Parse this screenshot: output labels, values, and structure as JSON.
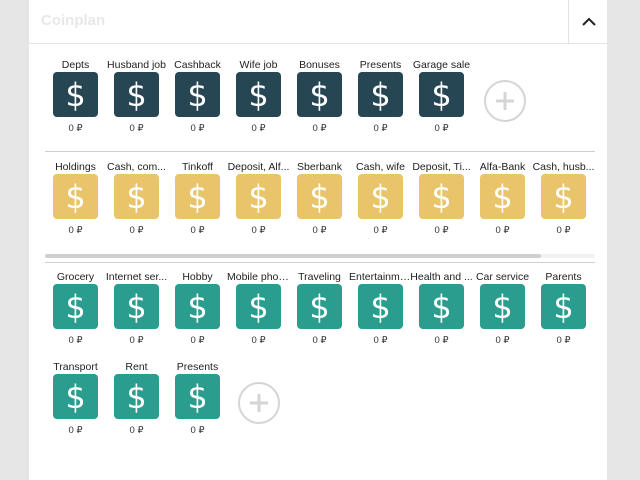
{
  "header": {
    "title": "Coinplan"
  },
  "colors": {
    "income": "#264653",
    "accounts": "#e9c46a",
    "expenses": "#2a9d8f"
  },
  "icons": {
    "tile": "dollar-sign-icon",
    "add": "plus-circle-icon",
    "collapse": "chevron-up-icon"
  },
  "income": {
    "items": [
      {
        "label": "Depts",
        "amount": "0 ₽"
      },
      {
        "label": "Husband job",
        "amount": "0 ₽"
      },
      {
        "label": "Cashback",
        "amount": "0 ₽"
      },
      {
        "label": "Wife job",
        "amount": "0 ₽"
      },
      {
        "label": "Bonuses",
        "amount": "0 ₽"
      },
      {
        "label": "Presents",
        "amount": "0 ₽"
      },
      {
        "label": "Garage sale",
        "amount": "0 ₽"
      }
    ]
  },
  "accounts": {
    "items": [
      {
        "label": "Holdings",
        "amount": "0 ₽"
      },
      {
        "label": "Cash, com...",
        "amount": "0 ₽"
      },
      {
        "label": "Tinkoff",
        "amount": "0 ₽"
      },
      {
        "label": "Deposit, Alf...",
        "amount": "0 ₽"
      },
      {
        "label": "Sberbank",
        "amount": "0 ₽"
      },
      {
        "label": "Cash, wife",
        "amount": "0 ₽"
      },
      {
        "label": "Deposit, Ti...",
        "amount": "0 ₽"
      },
      {
        "label": "Alfa-Bank",
        "amount": "0 ₽"
      },
      {
        "label": "Cash, husb...",
        "amount": "0 ₽"
      }
    ]
  },
  "expenses": {
    "items": [
      {
        "label": "Grocery",
        "amount": "0 ₽"
      },
      {
        "label": "Internet ser...",
        "amount": "0 ₽"
      },
      {
        "label": "Hobby",
        "amount": "0 ₽"
      },
      {
        "label": "Mobile phone",
        "amount": "0 ₽"
      },
      {
        "label": "Traveling",
        "amount": "0 ₽"
      },
      {
        "label": "Entertainment",
        "amount": "0 ₽"
      },
      {
        "label": "Health and ...",
        "amount": "0 ₽"
      },
      {
        "label": "Car service",
        "amount": "0 ₽"
      },
      {
        "label": "Parents",
        "amount": "0 ₽"
      },
      {
        "label": "Transport",
        "amount": "0 ₽"
      },
      {
        "label": "Rent",
        "amount": "0 ₽"
      },
      {
        "label": "Presents",
        "amount": "0 ₽"
      }
    ]
  }
}
